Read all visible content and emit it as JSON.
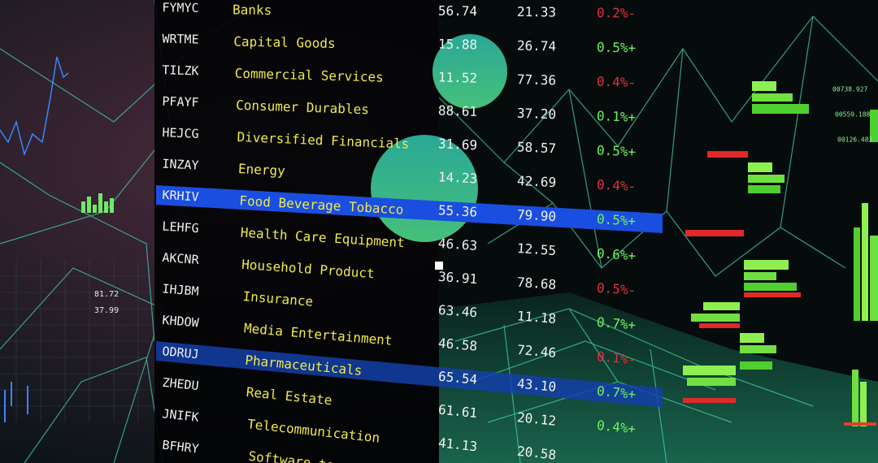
{
  "table": {
    "rows": [
      {
        "ticker": "FYMYC",
        "sector": "Banks",
        "price": "56.74",
        "volume": "21.33",
        "change": "0.2%-",
        "color": "#e0333a"
      },
      {
        "ticker": "WRTME",
        "sector": "Capital Goods",
        "price": "15.88",
        "volume": "26.74",
        "change": "0.5%+",
        "color": "#72f062"
      },
      {
        "ticker": "TILZK",
        "sector": "Commercial Services",
        "price": "11.52",
        "volume": "77.36",
        "change": "0.4%-",
        "color": "#e0333a"
      },
      {
        "ticker": "PFAYF",
        "sector": "Consumer Durables",
        "price": "88.61",
        "volume": "37.20",
        "change": "0.1%+",
        "color": "#72f062"
      },
      {
        "ticker": "HEJCG",
        "sector": "Diversified Financials",
        "price": "31.69",
        "volume": "58.57",
        "change": "0.5%+",
        "color": "#72f062"
      },
      {
        "ticker": "INZAY",
        "sector": "Energy",
        "price": "14.23",
        "volume": "42.69",
        "change": "0.4%-",
        "color": "#e0333a"
      },
      {
        "ticker": "KRHIV",
        "sector": "Food Beverage Tobacco",
        "price": "55.36",
        "volume": "79.90",
        "change": "0.5%+",
        "color": "#72f062",
        "highlight": true
      },
      {
        "ticker": "LEHFG",
        "sector": "Health Care Equipment",
        "price": "46.63",
        "volume": "12.55",
        "change": "0.6%+",
        "color": "#72f062"
      },
      {
        "ticker": "AKCNR",
        "sector": "Household Product",
        "price": "36.91",
        "volume": "78.68",
        "change": "0.5%-",
        "color": "#e0333a"
      },
      {
        "ticker": "IHJBM",
        "sector": "Insurance",
        "price": "63.46",
        "volume": "11.18",
        "change": "0.7%+",
        "color": "#72f062"
      },
      {
        "ticker": "KHDOW",
        "sector": "Media Entertainment",
        "price": "46.58",
        "volume": "72.46",
        "change": "0.1%-",
        "color": "#e0333a"
      },
      {
        "ticker": "ODRUJ",
        "sector": "Pharmaceuticals",
        "price": "65.54",
        "volume": "43.10",
        "change": "0.7%+",
        "color": "#72f062",
        "highlight": true
      },
      {
        "ticker": "ZHEDU",
        "sector": "Real Estate",
        "price": "61.61",
        "volume": "20.12",
        "change": "0.4%+",
        "color": "#72f062"
      },
      {
        "ticker": "JNIFK",
        "sector": "Telecommunication",
        "price": "41.13",
        "volume": "20.58"
      },
      {
        "ticker": "BFHRY",
        "sector": "Software tec"
      }
    ]
  },
  "left_readout": [
    "81.72",
    "37.99"
  ],
  "right_readout": [
    "00738.927",
    "00559.188",
    "00126.483"
  ]
}
